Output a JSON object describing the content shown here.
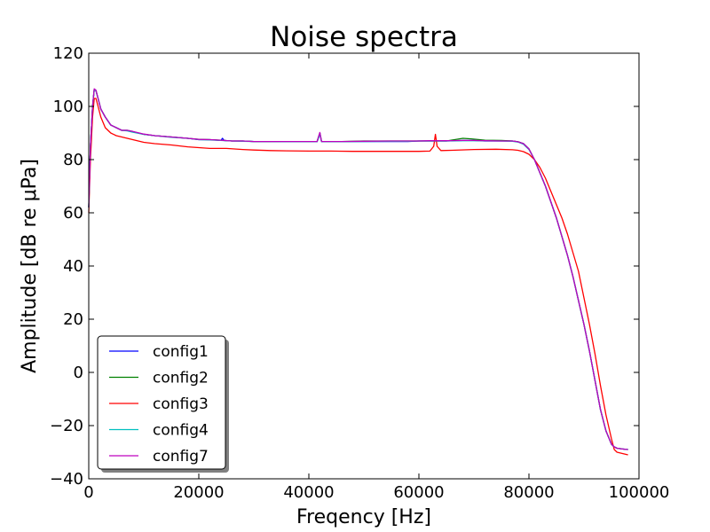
{
  "chart_data": {
    "type": "line",
    "title": "Noise spectra",
    "xlabel": "Freqency [Hz]",
    "ylabel": "Amplitude [dB re μPa]",
    "xlim": [
      0,
      100000
    ],
    "ylim": [
      -40,
      120
    ],
    "xticks": [
      0,
      20000,
      40000,
      60000,
      80000,
      100000
    ],
    "xtick_labels": [
      "0",
      "20000",
      "40000",
      "60000",
      "80000",
      "100000"
    ],
    "yticks": [
      -40,
      -20,
      0,
      20,
      40,
      60,
      80,
      100,
      120
    ],
    "ytick_labels": [
      "−40",
      "−20",
      "0",
      "20",
      "40",
      "60",
      "80",
      "100",
      "120"
    ],
    "grid": false,
    "legend_position": "lower-left",
    "series": [
      {
        "name": "config1",
        "color": "#0000ff",
        "x": [
          0,
          300,
          700,
          1000,
          1300,
          1700,
          2200,
          3000,
          4000,
          5000,
          6000,
          7000,
          8000,
          10000,
          12000,
          15000,
          18000,
          20000,
          22000,
          24000,
          24300,
          24600,
          26000,
          28000,
          30000,
          33000,
          36000,
          39000,
          41500,
          42000,
          42300,
          42700,
          43500,
          46000,
          50000,
          55000,
          58000,
          60000,
          62000,
          63000,
          65000,
          68000,
          70000,
          72000,
          75000,
          77000,
          78000,
          79000,
          80000,
          81000,
          82000,
          83000,
          84000,
          85000,
          86000,
          87000,
          88000,
          89000,
          90000,
          91000,
          92000,
          93000,
          94000,
          95000,
          95500,
          96000,
          97000,
          98000
        ],
        "y": [
          62,
          85,
          100,
          106.5,
          106,
          103,
          99,
          96,
          93,
          92,
          91,
          91,
          90.5,
          89.5,
          89,
          88.5,
          88,
          87.5,
          87.5,
          87.2,
          88,
          87.2,
          87,
          87,
          86.8,
          86.8,
          86.8,
          86.8,
          86.8,
          90,
          86.8,
          86.8,
          86.8,
          86.8,
          86.8,
          86.8,
          86.8,
          87,
          87,
          87,
          87,
          87.2,
          87.2,
          87,
          87,
          87,
          86.7,
          86,
          84,
          80,
          75,
          70,
          64,
          58,
          51,
          44,
          36,
          27,
          18,
          8,
          -3,
          -14,
          -22,
          -27,
          -28,
          -28.5,
          -28.8,
          -29
        ]
      },
      {
        "name": "config2",
        "color": "#008000",
        "x": [
          0,
          300,
          700,
          1000,
          1300,
          1700,
          2200,
          3000,
          4000,
          5000,
          6000,
          7000,
          8000,
          10000,
          12000,
          15000,
          18000,
          20000,
          22000,
          24000,
          26000,
          28000,
          30000,
          33000,
          36000,
          39000,
          41500,
          42000,
          42300,
          42700,
          43500,
          46000,
          50000,
          55000,
          58000,
          60000,
          62000,
          63000,
          65000,
          66500,
          68000,
          69500,
          71000,
          72000,
          75000,
          77000,
          78000,
          79000,
          80000,
          81000,
          82000,
          83000,
          84000,
          85000,
          86000,
          87000,
          88000,
          89000,
          90000,
          91000,
          92000,
          93000,
          94000,
          95000,
          95500,
          96000,
          97000,
          98000
        ],
        "y": [
          62,
          85,
          100,
          106.5,
          106,
          103,
          99,
          96,
          93,
          92,
          91,
          91,
          90.5,
          89.5,
          89,
          88.5,
          88,
          87.6,
          87.5,
          87.3,
          87,
          87,
          86.8,
          86.8,
          86.8,
          86.8,
          86.8,
          90,
          86.8,
          86.8,
          86.8,
          86.8,
          87,
          87,
          87,
          87,
          87,
          87,
          87,
          87.5,
          88,
          87.8,
          87.5,
          87.3,
          87.2,
          87,
          86.7,
          86,
          84,
          80,
          75,
          70,
          64,
          58,
          51,
          44,
          36,
          27,
          18,
          8,
          -3,
          -14,
          -22,
          -27,
          -28,
          -28.5,
          -28.8,
          -29
        ]
      },
      {
        "name": "config3",
        "color": "#ff0000",
        "x": [
          0,
          300,
          700,
          1000,
          1300,
          1700,
          2200,
          3000,
          4000,
          5000,
          6000,
          7000,
          8000,
          10000,
          12000,
          15000,
          18000,
          20000,
          22000,
          25000,
          28000,
          30000,
          33000,
          36000,
          40000,
          44000,
          48000,
          52000,
          56000,
          60000,
          62000,
          62700,
          63000,
          63300,
          64000,
          66000,
          70000,
          74000,
          77000,
          78000,
          79000,
          80000,
          81000,
          82000,
          83000,
          84000,
          85000,
          86000,
          87000,
          88000,
          89000,
          90000,
          91000,
          92000,
          93000,
          94000,
          95000,
          95500,
          96000,
          97000,
          98000
        ],
        "y": [
          60,
          80,
          96,
          103,
          103,
          100,
          96,
          92,
          90,
          89,
          88.5,
          88,
          87.5,
          86.5,
          86,
          85.5,
          84.8,
          84.5,
          84.2,
          84.2,
          83.8,
          83.6,
          83.4,
          83.3,
          83.2,
          83.2,
          83.1,
          83.1,
          83.1,
          83.1,
          83.2,
          85,
          89.5,
          85,
          83.4,
          83.5,
          83.8,
          83.9,
          83.7,
          83.5,
          83,
          82,
          80,
          77,
          73,
          68,
          63,
          58,
          52,
          45,
          38,
          28,
          18,
          7,
          -5,
          -16,
          -25,
          -29,
          -30,
          -30.5,
          -31
        ]
      },
      {
        "name": "config4",
        "color": "#00bfbf",
        "x": [
          0,
          300,
          700,
          1000,
          1300,
          1700,
          2200,
          3000,
          4000,
          5000,
          6000,
          7000,
          8000,
          10000,
          12000,
          15000,
          18000,
          20000,
          22000,
          24000,
          26000,
          28000,
          30000,
          33000,
          36000,
          39000,
          41500,
          42000,
          42300,
          42700,
          43500,
          46000,
          50000,
          55000,
          58000,
          60000,
          62000,
          65000,
          68000,
          70000,
          72000,
          75000,
          77000,
          78000,
          79000,
          80000,
          81000,
          82000,
          83000,
          84000,
          85000,
          86000,
          87000,
          88000,
          89000,
          90000,
          91000,
          92000,
          93000,
          94000,
          95000,
          95500,
          96000,
          97000,
          98000
        ],
        "y": [
          62,
          85,
          100,
          106.3,
          105.8,
          103,
          99,
          96,
          93,
          92,
          91,
          90.8,
          90.3,
          89.5,
          89,
          88.4,
          88,
          87.5,
          87.4,
          87.2,
          87,
          86.9,
          86.8,
          86.8,
          86.7,
          86.7,
          86.7,
          89.5,
          86.7,
          86.7,
          86.7,
          86.7,
          86.8,
          86.9,
          86.9,
          87,
          87,
          87,
          87.1,
          87.1,
          87,
          87,
          86.9,
          86.6,
          85.8,
          83.8,
          80,
          75,
          70,
          64,
          58,
          51,
          44,
          36,
          27,
          18,
          8,
          -3,
          -14,
          -22,
          -27,
          -28,
          -28.5,
          -28.8,
          -29
        ]
      },
      {
        "name": "config7",
        "color": "#bf00bf",
        "x": [
          0,
          300,
          700,
          1000,
          1300,
          1700,
          2200,
          3000,
          4000,
          5000,
          6000,
          7000,
          8000,
          10000,
          12000,
          15000,
          18000,
          20000,
          22000,
          24000,
          26000,
          28000,
          30000,
          33000,
          36000,
          39000,
          41500,
          42000,
          42300,
          42700,
          43500,
          46000,
          50000,
          55000,
          58000,
          60000,
          62000,
          65000,
          68000,
          70000,
          72000,
          75000,
          77000,
          78000,
          79000,
          80000,
          81000,
          82000,
          83000,
          84000,
          85000,
          86000,
          87000,
          88000,
          89000,
          90000,
          91000,
          92000,
          93000,
          94000,
          95000,
          95500,
          96000,
          97000,
          98000
        ],
        "y": [
          62,
          85,
          100,
          106.6,
          106.1,
          103,
          99,
          96,
          93,
          92,
          91,
          91,
          90.6,
          89.6,
          89,
          88.5,
          88,
          87.6,
          87.5,
          87.3,
          87,
          87,
          86.8,
          86.8,
          86.8,
          86.8,
          86.8,
          90.2,
          86.8,
          86.8,
          86.8,
          86.8,
          86.9,
          87,
          87,
          87,
          87.1,
          87.1,
          87.2,
          87.2,
          87.1,
          87,
          87,
          86.7,
          86,
          84,
          80,
          75,
          70,
          64,
          58,
          51,
          44,
          36,
          27,
          18,
          8,
          -3,
          -14,
          -22,
          -27,
          -28,
          -28.5,
          -28.8,
          -29
        ]
      }
    ]
  }
}
